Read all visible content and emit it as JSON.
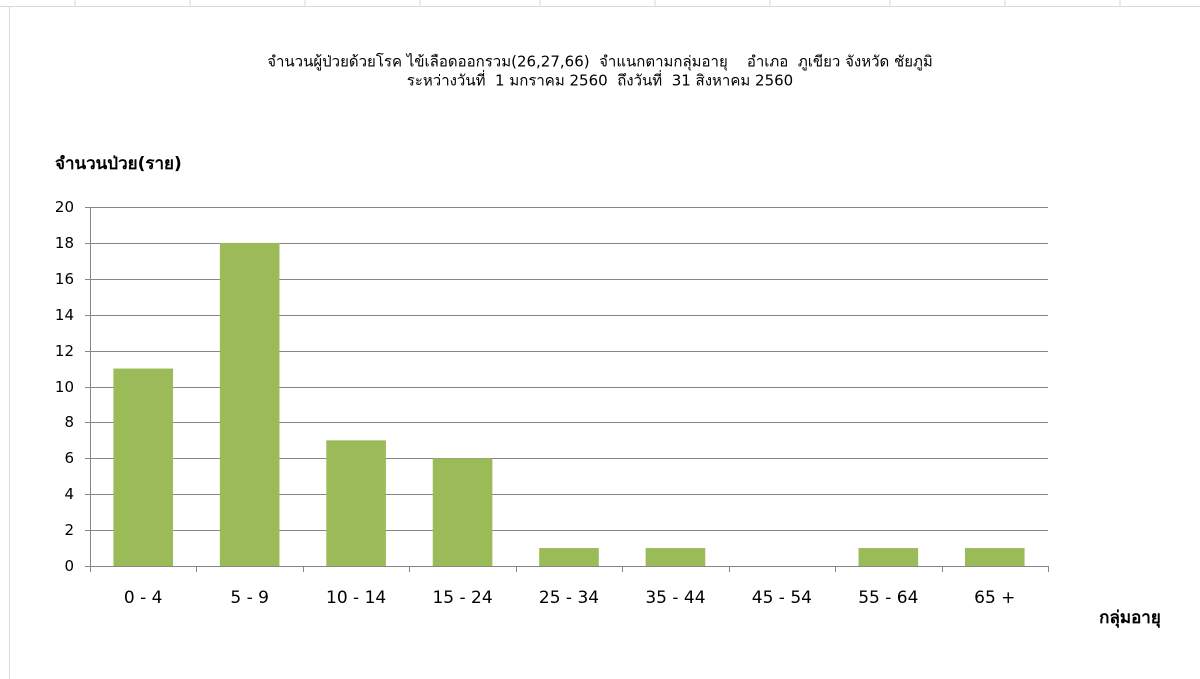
{
  "chart_data": {
    "type": "bar",
    "title": "จำนวนผู้ป่วยด้วยโรค ไข้เลือดออกรวม(26,27,66)  จำแนกตามกลุ่มอายุ    อำเภอ  ภูเขียว จังหวัด ชัยภูมิ",
    "subtitle": "ระหว่างวันที่  1 มกราคม 2560  ถึงวันที่  31 สิงหาคม 2560",
    "y_label": "จำนวนป่วย(ราย)",
    "x_label": "กลุ่มอายุ",
    "categories": [
      "0 - 4",
      "5 - 9",
      "10 - 14",
      "15 - 24",
      "25 - 34",
      "35 - 44",
      "45 - 54",
      "55 - 64",
      "65 +"
    ],
    "values": [
      11,
      18,
      7,
      6,
      1,
      1,
      0,
      1,
      1
    ],
    "color": "#9bbb59",
    "ylim": [
      0,
      20
    ],
    "yticks": [
      0,
      2,
      4,
      6,
      8,
      10,
      12,
      14,
      16,
      18,
      20
    ],
    "grid": true
  }
}
